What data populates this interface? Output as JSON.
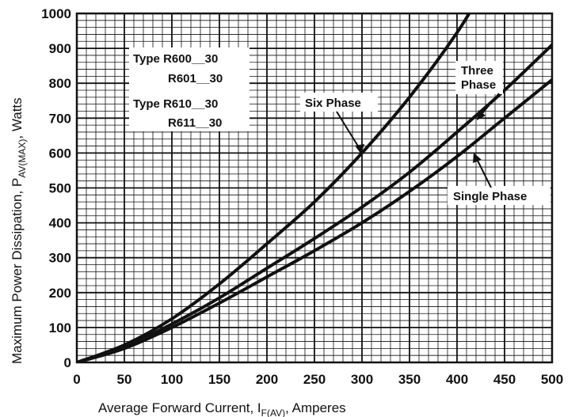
{
  "chart_data": {
    "type": "line",
    "title": "",
    "xlabel": {
      "main": "Average Forward Current, I",
      "sub": "F(AV)",
      "suffix": ", Amperes"
    },
    "ylabel": {
      "main": "Maximum Power Dissipation, P",
      "sub": "AV(MAX)",
      "suffix": ", Watts"
    },
    "xlim": [
      0,
      500
    ],
    "ylim": [
      0,
      1000
    ],
    "x_ticks": [
      "0",
      "50",
      "100",
      "150",
      "200",
      "250",
      "300",
      "350",
      "400",
      "450",
      "500"
    ],
    "y_ticks": [
      "0",
      "100",
      "200",
      "300",
      "400",
      "500",
      "600",
      "700",
      "800",
      "900",
      "1000"
    ],
    "grid": true,
    "x": [
      0,
      50,
      100,
      150,
      200,
      250,
      300,
      350,
      400,
      450,
      500
    ],
    "series": [
      {
        "name": "Six Phase",
        "values": [
          0,
          50,
          125,
          225,
          340,
          460,
          600,
          760,
          945,
          null,
          null
        ]
      },
      {
        "name": "Three Phase",
        "values": [
          0,
          45,
          110,
          185,
          270,
          355,
          445,
          545,
          660,
          780,
          910
        ]
      },
      {
        "name": "Single Phase",
        "values": [
          0,
          40,
          100,
          170,
          245,
          320,
          400,
          490,
          590,
          700,
          810
        ]
      }
    ],
    "legend_box": {
      "lines": [
        "Type R600__30",
        "R601__30",
        "Type R610__30",
        "R611__30"
      ]
    },
    "annotations": {
      "six_phase": "Six Phase",
      "three_phase_1": "Three",
      "three_phase_2": "Phase",
      "single_phase": "Single Phase"
    }
  }
}
